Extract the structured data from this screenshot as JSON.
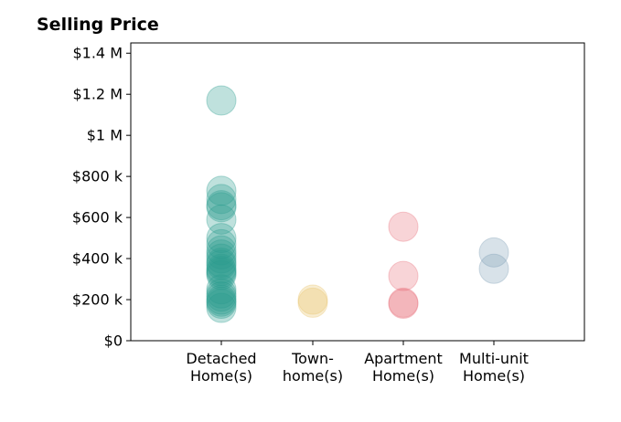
{
  "chart_data": {
    "type": "scatter",
    "title": "Selling Price",
    "xlabel": "",
    "ylabel": "",
    "categories": [
      [
        "Detached",
        "Home(s)"
      ],
      [
        "Town-",
        "home(s)"
      ],
      [
        "Apartment",
        "Home(s)"
      ],
      [
        "Multi-unit",
        "Home(s)"
      ]
    ],
    "ylim": [
      0,
      1450000
    ],
    "y_ticks": [
      0,
      200000,
      400000,
      600000,
      800000,
      1000000,
      1200000,
      1400000
    ],
    "y_tick_labels": [
      "$0",
      "$200 k",
      "$400 k",
      "$600 k",
      "$800 k",
      "$1 M",
      "$1.2 M",
      "$1.4 M"
    ],
    "grid": false,
    "legend": "none",
    "series": [
      {
        "category": 0,
        "color": "#2a9d8f",
        "values": [
          1170000,
          730000,
          690000,
          660000,
          650000,
          590000,
          500000,
          470000,
          440000,
          420000,
          400000,
          380000,
          370000,
          350000,
          340000,
          330000,
          320000,
          250000,
          230000,
          215000,
          200000,
          190000,
          180000,
          160000
        ]
      },
      {
        "category": 1,
        "color": "#e9c46a",
        "values": [
          200000,
          185000
        ]
      },
      {
        "category": 2,
        "color": "#e76f7a",
        "values": [
          555000,
          315000,
          185000,
          180000
        ]
      },
      {
        "category": 3,
        "color": "#7d9fb5",
        "values": [
          430000,
          350000
        ]
      }
    ]
  }
}
